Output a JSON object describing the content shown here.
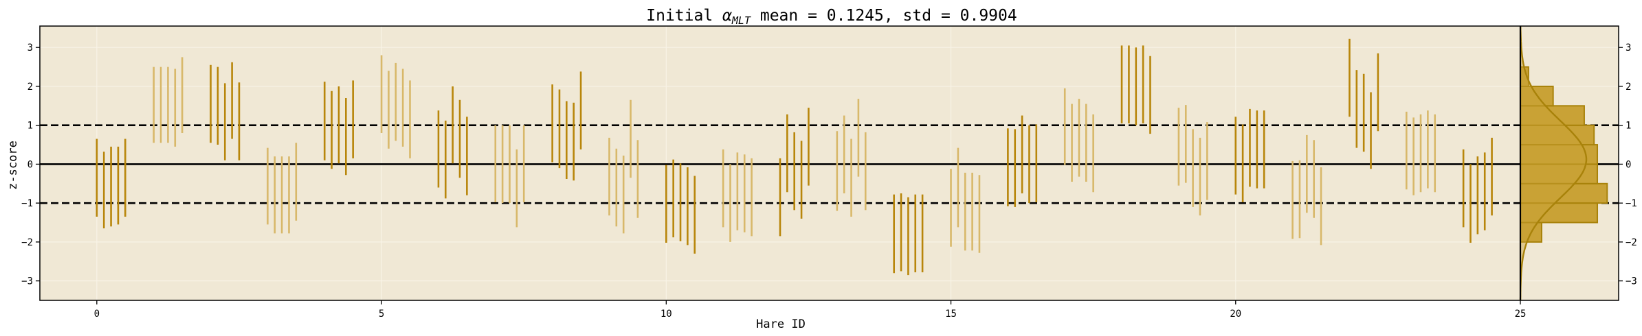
{
  "chart_data": {
    "type": "errorbar",
    "title_prefix": "Initial ",
    "title_symbol": "α",
    "title_subscript": "MLT",
    "title_suffix": " mean = 0.1245, std = 0.9904",
    "xlabel": "Hare ID",
    "ylabel": "z-score",
    "xlim": [
      -1,
      25
    ],
    "ylim": [
      -3.5,
      3.55
    ],
    "x_ticks": [
      0,
      5,
      10,
      15,
      20,
      25
    ],
    "y_ticks": [
      -3,
      -2,
      -1,
      0,
      1,
      2,
      3
    ],
    "y_tick_labels": [
      "−3",
      "−2",
      "−1",
      "0",
      "1",
      "2",
      "3"
    ],
    "reference_lines": [
      {
        "y": 0,
        "style": "solid"
      },
      {
        "y": 1,
        "style": "dashed"
      },
      {
        "y": -1,
        "style": "dashed"
      }
    ],
    "grid": true,
    "colors": {
      "background": "#f0e8d5",
      "dark_bar": "#b8860b",
      "light_bar": "#d8b86a",
      "hist_fill": "#c9a236",
      "hist_edge": "#a8820a",
      "grid": "#f8f3e6"
    },
    "hares": [
      {
        "id": 0,
        "bars": [
          [
            -1.35,
            0.65
          ],
          [
            -1.65,
            0.32
          ],
          [
            -1.6,
            0.45
          ],
          [
            -1.55,
            0.45
          ],
          [
            -1.35,
            0.65
          ]
        ]
      },
      {
        "id": 1,
        "bars": [
          [
            0.55,
            2.5
          ],
          [
            0.55,
            2.5
          ],
          [
            0.55,
            2.5
          ],
          [
            0.45,
            2.45
          ],
          [
            0.8,
            2.75
          ]
        ]
      },
      {
        "id": 2,
        "bars": [
          [
            0.55,
            2.55
          ],
          [
            0.5,
            2.5
          ],
          [
            0.1,
            2.08
          ],
          [
            0.65,
            2.62
          ],
          [
            0.1,
            2.1
          ]
        ]
      },
      {
        "id": 3,
        "bars": [
          [
            -1.55,
            0.42
          ],
          [
            -1.78,
            0.2
          ],
          [
            -1.78,
            0.2
          ],
          [
            -1.78,
            0.2
          ],
          [
            -1.45,
            0.55
          ]
        ]
      },
      {
        "id": 4,
        "bars": [
          [
            0.1,
            2.12
          ],
          [
            -0.12,
            1.88
          ],
          [
            0.02,
            2.0
          ],
          [
            -0.28,
            1.7
          ],
          [
            0.15,
            2.15
          ]
        ]
      },
      {
        "id": 5,
        "bars": [
          [
            0.8,
            2.8
          ],
          [
            0.4,
            2.4
          ],
          [
            0.6,
            2.6
          ],
          [
            0.45,
            2.45
          ],
          [
            0.15,
            2.15
          ]
        ]
      },
      {
        "id": 6,
        "bars": [
          [
            -0.6,
            1.38
          ],
          [
            -0.88,
            1.12
          ],
          [
            0.02,
            2.0
          ],
          [
            -0.35,
            1.65
          ],
          [
            -0.8,
            1.22
          ]
        ]
      },
      {
        "id": 7,
        "bars": [
          [
            -0.98,
            1.0
          ],
          [
            -1.0,
            1.0
          ],
          [
            -1.0,
            1.0
          ],
          [
            -1.62,
            0.38
          ],
          [
            -0.98,
            1.0
          ]
        ]
      },
      {
        "id": 8,
        "bars": [
          [
            0.05,
            2.05
          ],
          [
            -0.1,
            1.92
          ],
          [
            -0.38,
            1.62
          ],
          [
            -0.42,
            1.58
          ],
          [
            0.38,
            2.38
          ]
        ]
      },
      {
        "id": 9,
        "bars": [
          [
            -1.32,
            0.68
          ],
          [
            -1.6,
            0.4
          ],
          [
            -1.78,
            0.22
          ],
          [
            -0.35,
            1.65
          ],
          [
            -1.38,
            0.62
          ]
        ]
      },
      {
        "id": 10,
        "bars": [
          [
            -2.02,
            -0.02
          ],
          [
            -1.88,
            0.12
          ],
          [
            -1.98,
            0.02
          ],
          [
            -2.08,
            -0.08
          ],
          [
            -2.3,
            -0.3
          ]
        ]
      },
      {
        "id": 11,
        "bars": [
          [
            -1.62,
            0.38
          ],
          [
            -2.0,
            0.0
          ],
          [
            -1.7,
            0.3
          ],
          [
            -1.75,
            0.25
          ],
          [
            -1.85,
            0.15
          ]
        ]
      },
      {
        "id": 12,
        "bars": [
          [
            -1.85,
            0.15
          ],
          [
            -0.72,
            1.28
          ],
          [
            -1.18,
            0.82
          ],
          [
            -1.4,
            0.6
          ],
          [
            -0.55,
            1.45
          ]
        ]
      },
      {
        "id": 13,
        "bars": [
          [
            -1.2,
            0.85
          ],
          [
            -0.75,
            1.25
          ],
          [
            -1.35,
            0.65
          ],
          [
            -0.32,
            1.68
          ],
          [
            -1.18,
            0.82
          ]
        ]
      },
      {
        "id": 14,
        "bars": [
          [
            -2.8,
            -0.78
          ],
          [
            -2.75,
            -0.75
          ],
          [
            -2.85,
            -0.85
          ],
          [
            -2.78,
            -0.78
          ],
          [
            -2.78,
            -0.78
          ]
        ]
      },
      {
        "id": 15,
        "bars": [
          [
            -2.12,
            -0.12
          ],
          [
            -1.62,
            0.42
          ],
          [
            -2.22,
            -0.22
          ],
          [
            -2.22,
            -0.22
          ],
          [
            -2.28,
            -0.28
          ]
        ]
      },
      {
        "id": 16,
        "bars": [
          [
            -1.08,
            0.92
          ],
          [
            -1.1,
            0.9
          ],
          [
            -0.75,
            1.25
          ],
          [
            -1.0,
            1.0
          ],
          [
            -0.98,
            1.02
          ]
        ]
      },
      {
        "id": 17,
        "bars": [
          [
            -0.02,
            1.95
          ],
          [
            -0.45,
            1.55
          ],
          [
            -0.32,
            1.68
          ],
          [
            -0.45,
            1.55
          ],
          [
            -0.72,
            1.28
          ]
        ]
      },
      {
        "id": 18,
        "bars": [
          [
            1.05,
            3.05
          ],
          [
            1.05,
            3.05
          ],
          [
            1.0,
            3.0
          ],
          [
            1.05,
            3.05
          ],
          [
            0.78,
            2.78
          ]
        ]
      },
      {
        "id": 19,
        "bars": [
          [
            -0.55,
            1.45
          ],
          [
            -0.48,
            1.52
          ],
          [
            -1.1,
            0.9
          ],
          [
            -1.32,
            0.68
          ],
          [
            -0.92,
            1.08
          ]
        ]
      },
      {
        "id": 20,
        "bars": [
          [
            -0.78,
            1.22
          ],
          [
            -0.98,
            1.02
          ],
          [
            -0.58,
            1.42
          ],
          [
            -0.62,
            1.38
          ],
          [
            -0.62,
            1.38
          ]
        ]
      },
      {
        "id": 21,
        "bars": [
          [
            -1.92,
            0.08
          ],
          [
            -1.9,
            0.1
          ],
          [
            -1.25,
            0.75
          ],
          [
            -1.38,
            0.62
          ],
          [
            -2.08,
            -0.08
          ]
        ]
      },
      {
        "id": 22,
        "bars": [
          [
            1.22,
            3.22
          ],
          [
            0.42,
            2.42
          ],
          [
            0.32,
            2.32
          ],
          [
            -0.12,
            1.85
          ],
          [
            0.85,
            2.85
          ]
        ]
      },
      {
        "id": 23,
        "bars": [
          [
            -0.65,
            1.35
          ],
          [
            -0.8,
            1.2
          ],
          [
            -0.72,
            1.28
          ],
          [
            -0.62,
            1.38
          ],
          [
            -0.72,
            1.28
          ]
        ]
      },
      {
        "id": 24,
        "bars": [
          [
            -1.62,
            0.38
          ],
          [
            -2.02,
            0.0
          ],
          [
            -1.8,
            0.2
          ],
          [
            -1.7,
            0.3
          ],
          [
            -1.32,
            0.68
          ]
        ]
      }
    ],
    "histogram": {
      "bins": [
        [
          -2,
          -1.5
        ],
        [
          -1.5,
          -1
        ],
        [
          -1,
          -0.5
        ],
        [
          -0.5,
          0
        ],
        [
          0,
          0.5
        ],
        [
          0.5,
          1
        ],
        [
          1,
          1.5
        ],
        [
          1.5,
          2
        ],
        [
          2,
          2.5
        ]
      ],
      "density": [
        0.13,
        0.47,
        0.53,
        0.47,
        0.47,
        0.45,
        0.39,
        0.2,
        0.05
      ]
    }
  }
}
